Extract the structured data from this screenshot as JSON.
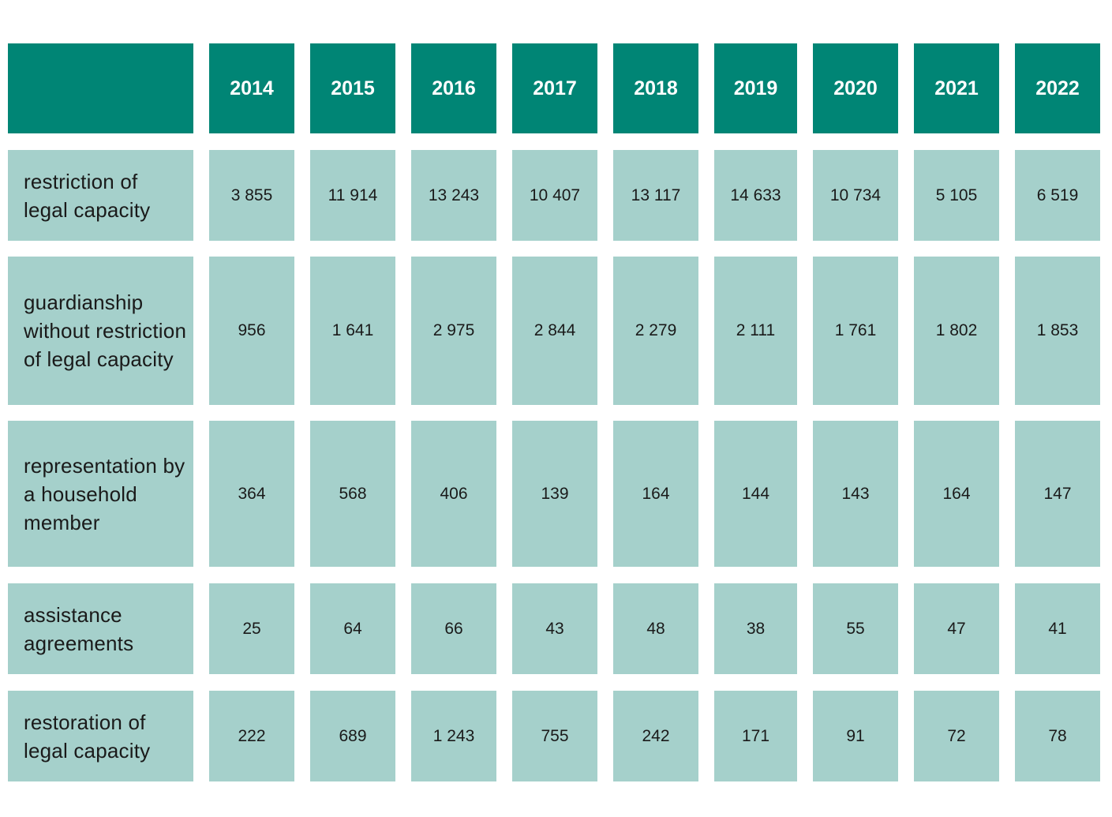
{
  "chart_data": {
    "type": "table",
    "corner_label": "",
    "columns": [
      "2014",
      "2015",
      "2016",
      "2017",
      "2018",
      "2019",
      "2020",
      "2021",
      "2022"
    ],
    "rows": [
      {
        "label": "restriction of legal capacity",
        "values": [
          "3 855",
          "11 914",
          "13 243",
          "10 407",
          "13 117",
          "14 633",
          "10 734",
          "5 105",
          "6 519"
        ]
      },
      {
        "label": "guardianship without restriction of legal capacity",
        "values": [
          "956",
          "1 641",
          "2 975",
          "2 844",
          "2 279",
          "2 111",
          "1 761",
          "1 802",
          "1 853"
        ]
      },
      {
        "label": "representation by a household member",
        "values": [
          "364",
          "568",
          "406",
          "139",
          "164",
          "144",
          "143",
          "164",
          "147"
        ]
      },
      {
        "label": "assistance agreements",
        "values": [
          "25",
          "64",
          "66",
          "43",
          "48",
          "38",
          "55",
          "47",
          "41"
        ]
      },
      {
        "label": "restoration of legal capacity",
        "values": [
          "222",
          "689",
          "1 243",
          "755",
          "242",
          "171",
          "91",
          "72",
          "78"
        ]
      }
    ]
  },
  "colors": {
    "header_bg": "#008575",
    "header_text": "#ffffff",
    "cell_bg": "#a5d0cb",
    "cell_text": "#1a1a1a"
  }
}
